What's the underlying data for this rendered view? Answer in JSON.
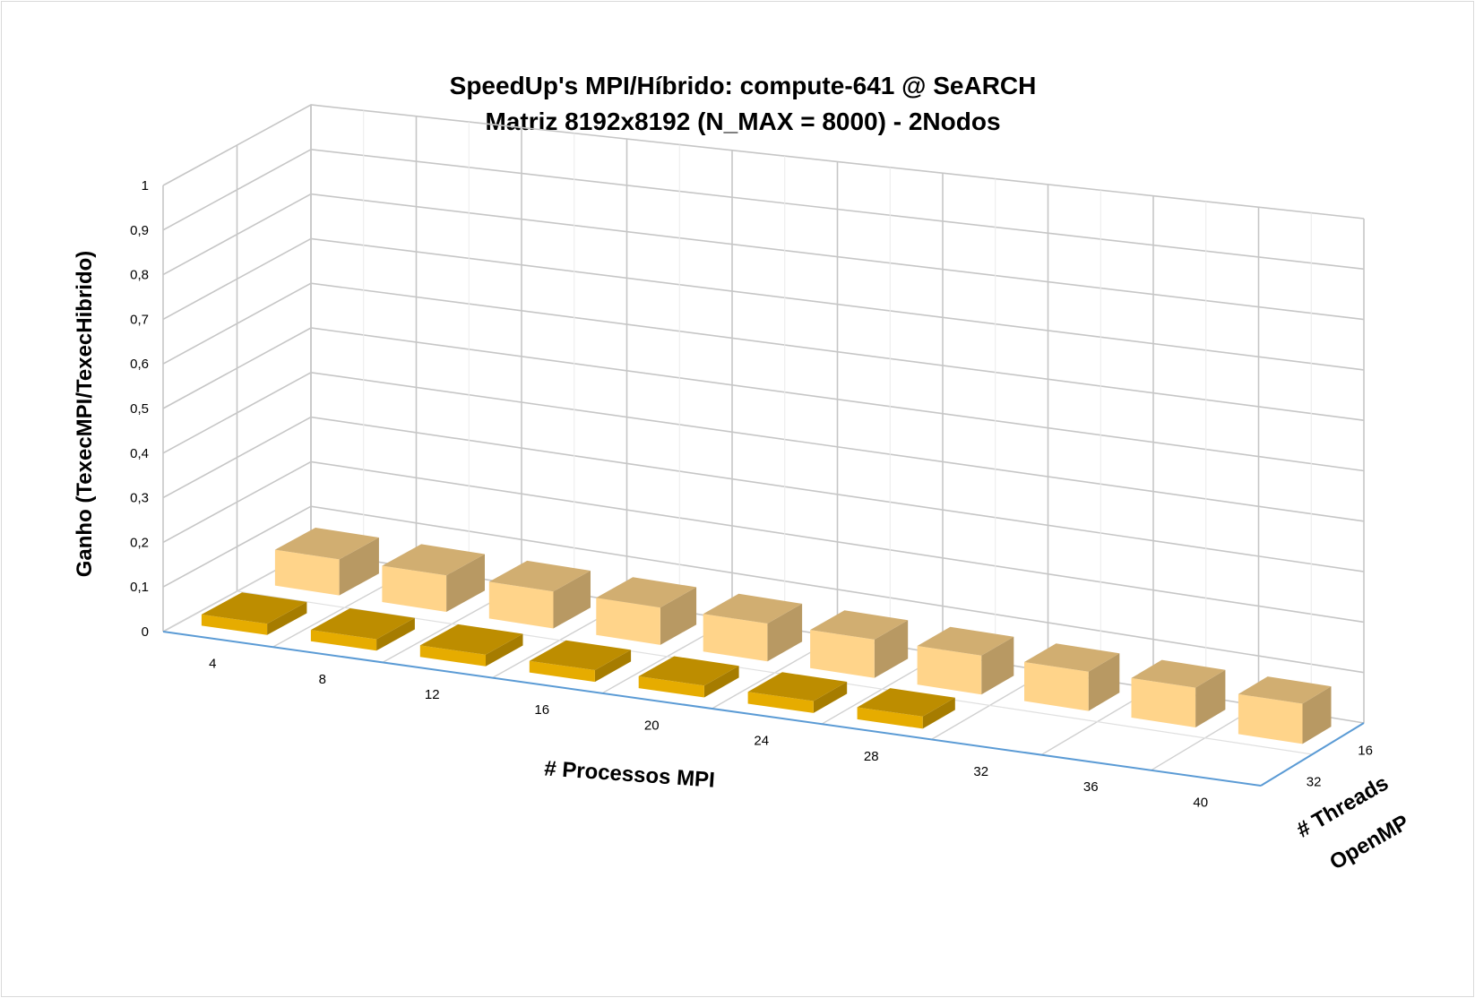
{
  "chart_data": {
    "type": "bar",
    "title": "SpeedUp's MPI/Híbrido: compute-641 @ SeARCH",
    "subtitle": "Matriz 8192x8192 (N_MAX = 8000) - 2Nodos",
    "xlabel": "# Processos MPI",
    "ylabel": "Ganho (TexecMPI/TexecHibrido)",
    "zlabel": [
      "# Threads",
      "OpenMP"
    ],
    "categories": [
      "4",
      "8",
      "12",
      "16",
      "20",
      "24",
      "28",
      "32",
      "36",
      "40"
    ],
    "yticks": [
      "0",
      "0,1",
      "0,2",
      "0,3",
      "0,4",
      "0,5",
      "0,6",
      "0,7",
      "0,8",
      "0,9",
      "1"
    ],
    "ylim": [
      0,
      1
    ],
    "depth_categories": [
      "16",
      "32"
    ],
    "series": [
      {
        "name": "16",
        "color": "#ffd48a",
        "values": [
          0.08,
          0.08,
          0.08,
          0.08,
          0.08,
          0.08,
          0.08,
          0.08,
          0.08,
          0.08
        ]
      },
      {
        "name": "32",
        "color": "#e6ac00",
        "values": [
          0.025,
          0.025,
          0.025,
          0.025,
          0.025,
          0.025,
          0.025,
          null,
          null,
          null
        ]
      }
    ],
    "grid": true
  }
}
